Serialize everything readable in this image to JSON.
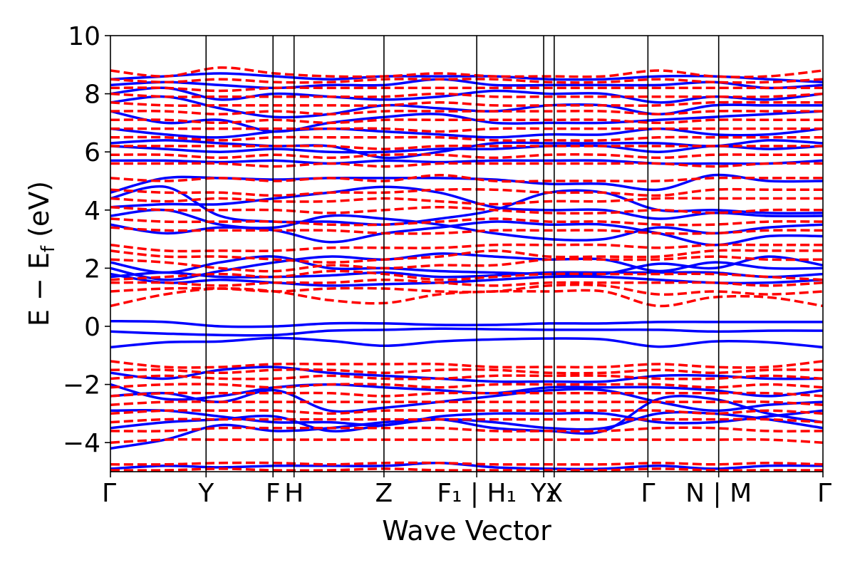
{
  "chart_data": {
    "type": "line",
    "xlabel": "Wave Vector",
    "ylabel": "E − E_f (eV)",
    "ylabel_parts": {
      "main": "E − E",
      "sub": "f",
      "unit": " (eV)"
    },
    "ylim": [
      -5,
      10
    ],
    "yticks": [
      -4,
      -2,
      0,
      2,
      4,
      6,
      8,
      10
    ],
    "ytick_labels": [
      "−4",
      "−2",
      "0",
      "2",
      "4",
      "6",
      "8",
      "10"
    ],
    "grid": false,
    "legend": "none",
    "kpath": [
      {
        "label": "Γ",
        "x": 0.0
      },
      {
        "label": "Y",
        "x": 1.0
      },
      {
        "label": "F",
        "x": 1.7
      },
      {
        "label": "H",
        "x": 1.92
      },
      {
        "label": "Z",
        "x": 2.86
      },
      {
        "label": "F₁ | H₁",
        "x": 3.83
      },
      {
        "label": "Y₁",
        "x": 4.53
      },
      {
        "label": "X",
        "x": 4.64
      },
      {
        "label": "Γ",
        "x": 5.62
      },
      {
        "label": "N | M",
        "x": 6.36
      },
      {
        "label": "Γ",
        "x": 7.45
      }
    ],
    "xlim": [
      0,
      7.45
    ],
    "series": [
      {
        "style": "solid",
        "color": "#0000ff",
        "bands": [
          [
            -0.72,
            -0.55,
            -0.52,
            -0.4,
            -0.5,
            -0.67,
            -0.52,
            -0.45,
            -0.42,
            -0.45,
            -0.7,
            -0.52,
            -0.55,
            -0.72
          ],
          [
            -0.18,
            -0.25,
            -0.3,
            -0.3,
            -0.15,
            -0.12,
            -0.08,
            -0.1,
            -0.12,
            -0.12,
            -0.12,
            -0.18,
            -0.15,
            -0.15
          ],
          [
            0.18,
            0.15,
            0.0,
            0.0,
            0.1,
            0.1,
            0.05,
            0.05,
            0.1,
            0.1,
            0.15,
            0.15,
            0.15,
            0.15
          ],
          [
            -3.5,
            -3.3,
            -3.2,
            -3.1,
            -3.6,
            -3.4,
            -3.2,
            -3.3,
            -3.5,
            -3.5,
            -3.0,
            -3.0,
            -3.2,
            -3.5
          ],
          [
            -4.2,
            -3.9,
            -3.4,
            -3.6,
            -3.5,
            -3.3,
            -3.2,
            -3.5,
            -3.6,
            -3.6,
            -2.5,
            -2.5,
            -3.0,
            -3.3
          ],
          [
            -2.4,
            -2.3,
            -2.6,
            -2.2,
            -2.9,
            -2.8,
            -2.6,
            -2.4,
            -2.2,
            -2.2,
            -2.6,
            -2.9,
            -2.7,
            -2.6
          ],
          [
            -2.0,
            -2.5,
            -2.4,
            -2.1,
            -2.0,
            -2.1,
            -2.2,
            -2.3,
            -2.1,
            -2.1,
            -2.1,
            -2.2,
            -2.4,
            -2.2
          ],
          [
            -1.6,
            -1.8,
            -1.5,
            -1.4,
            -1.6,
            -1.7,
            -1.8,
            -1.9,
            -1.9,
            -1.9,
            -1.7,
            -1.7,
            -1.8,
            -1.8
          ],
          [
            -2.9,
            -2.9,
            -3.1,
            -3.3,
            -3.3,
            -3.4,
            -3.1,
            -3.0,
            -3.0,
            -3.0,
            -3.3,
            -3.3,
            -3.1,
            -2.9
          ],
          [
            -4.9,
            -4.8,
            -4.85,
            -4.8,
            -4.8,
            -4.8,
            -4.7,
            -4.85,
            -4.9,
            -4.9,
            -4.8,
            -4.9,
            -4.8,
            -4.8
          ],
          [
            1.7,
            1.85,
            1.7,
            1.7,
            1.75,
            1.85,
            1.7,
            1.75,
            1.85,
            1.85,
            1.85,
            1.85,
            1.7,
            1.8
          ],
          [
            1.8,
            1.5,
            1.6,
            1.5,
            1.4,
            1.45,
            1.5,
            1.6,
            1.7,
            1.7,
            1.6,
            1.5,
            1.5,
            1.6
          ],
          [
            2.2,
            1.85,
            2.2,
            2.4,
            2.0,
            2.0,
            1.9,
            1.85,
            1.8,
            1.8,
            2.15,
            2.0,
            2.4,
            2.1
          ],
          [
            2.0,
            1.6,
            1.9,
            2.2,
            2.4,
            2.3,
            2.5,
            2.4,
            2.3,
            2.3,
            1.9,
            2.2,
            2.0,
            2.0
          ],
          [
            3.5,
            3.2,
            3.4,
            3.3,
            2.9,
            3.2,
            3.4,
            3.6,
            3.5,
            3.5,
            3.2,
            2.8,
            3.1,
            3.1
          ],
          [
            3.8,
            4.0,
            3.5,
            3.4,
            3.8,
            3.7,
            3.5,
            3.2,
            3.0,
            3.0,
            3.4,
            3.2,
            3.4,
            3.5
          ],
          [
            4.1,
            4.2,
            4.2,
            4.4,
            4.6,
            4.8,
            4.6,
            4.1,
            4.0,
            4.0,
            3.7,
            3.9,
            3.8,
            3.8
          ],
          [
            4.4,
            4.8,
            3.8,
            3.6,
            3.6,
            3.5,
            3.7,
            4.0,
            4.6,
            4.6,
            4.0,
            4.0,
            3.9,
            3.9
          ],
          [
            4.6,
            5.1,
            5.1,
            5.05,
            5.1,
            5.1,
            5.1,
            5.05,
            4.9,
            4.9,
            4.7,
            5.2,
            5.0,
            5.0
          ],
          [
            5.7,
            5.7,
            5.65,
            5.7,
            5.6,
            5.7,
            5.65,
            5.7,
            5.7,
            5.7,
            5.6,
            5.6,
            5.6,
            5.7
          ],
          [
            6.2,
            6.1,
            6.0,
            6.1,
            6.0,
            6.0,
            6.1,
            6.1,
            6.2,
            6.2,
            6.0,
            6.2,
            6.1,
            6.2
          ],
          [
            6.3,
            6.4,
            6.3,
            6.2,
            6.2,
            5.8,
            6.0,
            6.3,
            6.3,
            6.3,
            6.3,
            6.2,
            6.4,
            6.3
          ],
          [
            6.8,
            6.6,
            6.5,
            6.7,
            6.8,
            6.7,
            6.6,
            6.5,
            6.6,
            6.6,
            6.8,
            6.6,
            6.6,
            6.8
          ],
          [
            7.4,
            7.0,
            7.1,
            6.7,
            7.0,
            7.2,
            7.3,
            7.0,
            7.0,
            7.0,
            7.1,
            7.2,
            7.3,
            7.4
          ],
          [
            7.7,
            7.9,
            7.5,
            7.2,
            7.3,
            7.6,
            7.5,
            7.4,
            7.6,
            7.6,
            7.3,
            7.6,
            7.6,
            7.6
          ],
          [
            8.0,
            8.2,
            7.8,
            8.0,
            7.9,
            7.8,
            7.9,
            8.1,
            8.0,
            8.0,
            7.7,
            7.9,
            7.8,
            8.0
          ],
          [
            8.3,
            8.4,
            8.3,
            8.2,
            8.3,
            8.3,
            8.5,
            8.3,
            8.3,
            8.3,
            8.3,
            8.4,
            8.2,
            8.3
          ],
          [
            8.5,
            8.6,
            8.7,
            8.6,
            8.5,
            8.6,
            8.6,
            8.6,
            8.5,
            8.5,
            8.6,
            8.6,
            8.5,
            8.4
          ]
        ]
      },
      {
        "style": "dashed",
        "color": "#ff0000",
        "bands": [
          [
            0.7,
            1.1,
            1.3,
            1.2,
            0.9,
            0.8,
            1.1,
            1.2,
            1.2,
            1.2,
            0.7,
            1.0,
            1.0,
            0.7
          ],
          [
            1.2,
            1.3,
            1.3,
            1.2,
            1.3,
            1.3,
            1.2,
            1.2,
            1.4,
            1.4,
            1.1,
            1.2,
            1.1,
            1.2
          ],
          [
            1.5,
            1.5,
            1.4,
            1.5,
            1.5,
            1.6,
            1.5,
            1.4,
            1.5,
            1.5,
            1.5,
            1.5,
            1.4,
            1.5
          ],
          [
            1.6,
            1.7,
            1.8,
            1.7,
            1.9,
            1.8,
            1.6,
            1.7,
            1.8,
            1.8,
            1.8,
            1.8,
            1.7,
            1.6
          ],
          [
            2.3,
            2.2,
            2.0,
            1.9,
            2.1,
            2.0,
            2.1,
            2.1,
            2.3,
            2.3,
            2.3,
            2.4,
            2.3,
            2.3
          ],
          [
            2.6,
            2.4,
            2.4,
            2.3,
            2.2,
            2.3,
            2.4,
            2.6,
            2.4,
            2.4,
            2.4,
            2.6,
            2.6,
            2.6
          ],
          [
            2.8,
            2.6,
            2.6,
            2.6,
            2.7,
            2.7,
            2.7,
            2.8,
            2.8,
            2.8,
            2.7,
            2.8,
            2.8,
            2.8
          ],
          [
            3.4,
            3.3,
            3.3,
            3.3,
            3.3,
            3.2,
            3.2,
            3.3,
            3.3,
            3.3,
            3.2,
            3.2,
            3.3,
            3.3
          ],
          [
            3.7,
            3.6,
            3.6,
            3.6,
            3.5,
            3.5,
            3.6,
            3.7,
            3.6,
            3.6,
            3.5,
            3.5,
            3.6,
            3.6
          ],
          [
            4.1,
            4.0,
            4.0,
            4.0,
            3.9,
            4.0,
            4.1,
            4.0,
            3.9,
            3.9,
            4.0,
            3.9,
            4.0,
            4.0
          ],
          [
            4.4,
            4.3,
            4.4,
            4.3,
            4.3,
            4.4,
            4.3,
            4.2,
            4.3,
            4.3,
            4.4,
            4.4,
            4.4,
            4.4
          ],
          [
            4.7,
            4.6,
            4.6,
            4.5,
            4.6,
            4.6,
            4.7,
            4.7,
            4.6,
            4.6,
            4.5,
            4.7,
            4.7,
            4.7
          ],
          [
            5.1,
            5.0,
            5.1,
            5.0,
            5.1,
            5.0,
            5.2,
            5.0,
            5.0,
            5.0,
            5.0,
            5.1,
            5.1,
            5.1
          ],
          [
            5.6,
            5.6,
            5.6,
            5.5,
            5.6,
            5.5,
            5.6,
            5.6,
            5.6,
            5.6,
            5.6,
            5.5,
            5.6,
            5.6
          ],
          [
            5.9,
            5.9,
            5.8,
            5.9,
            5.8,
            5.9,
            5.9,
            5.8,
            5.9,
            5.9,
            5.8,
            5.9,
            5.9,
            5.9
          ],
          [
            6.2,
            6.2,
            6.2,
            6.2,
            6.2,
            6.1,
            6.2,
            6.2,
            6.2,
            6.2,
            6.2,
            6.2,
            6.2,
            6.2
          ],
          [
            6.5,
            6.5,
            6.4,
            6.5,
            6.5,
            6.5,
            6.5,
            6.4,
            6.4,
            6.4,
            6.5,
            6.5,
            6.5,
            6.5
          ],
          [
            6.8,
            6.8,
            6.8,
            6.8,
            6.8,
            6.8,
            6.7,
            6.8,
            6.8,
            6.8,
            6.8,
            6.8,
            6.8,
            6.8
          ],
          [
            7.1,
            7.1,
            7.0,
            7.1,
            7.0,
            7.1,
            7.1,
            7.1,
            7.1,
            7.1,
            7.0,
            7.1,
            7.1,
            7.1
          ],
          [
            7.4,
            7.4,
            7.3,
            7.4,
            7.3,
            7.4,
            7.4,
            7.4,
            7.4,
            7.4,
            7.3,
            7.4,
            7.4,
            7.4
          ],
          [
            7.7,
            7.6,
            7.6,
            7.6,
            7.6,
            7.6,
            7.7,
            7.6,
            7.6,
            7.6,
            7.6,
            7.7,
            7.7,
            7.7
          ],
          [
            8.0,
            7.9,
            7.9,
            7.9,
            7.9,
            7.9,
            8.0,
            7.9,
            7.9,
            7.9,
            7.9,
            7.9,
            7.9,
            8.0
          ],
          [
            8.2,
            8.2,
            8.1,
            8.2,
            8.2,
            8.2,
            8.2,
            8.2,
            8.2,
            8.2,
            8.2,
            8.2,
            8.2,
            8.2
          ],
          [
            8.5,
            8.4,
            8.5,
            8.4,
            8.4,
            8.5,
            8.5,
            8.5,
            8.4,
            8.4,
            8.5,
            8.4,
            8.4,
            8.5
          ],
          [
            8.8,
            8.6,
            8.9,
            8.7,
            8.6,
            8.6,
            8.7,
            8.6,
            8.6,
            8.6,
            8.8,
            8.6,
            8.6,
            8.8
          ],
          [
            -1.2,
            -1.4,
            -1.4,
            -1.3,
            -1.3,
            -1.3,
            -1.3,
            -1.4,
            -1.4,
            -1.4,
            -1.3,
            -1.4,
            -1.4,
            -1.2
          ],
          [
            -1.5,
            -1.5,
            -1.6,
            -1.5,
            -1.5,
            -1.6,
            -1.5,
            -1.5,
            -1.6,
            -1.6,
            -1.5,
            -1.6,
            -1.5,
            -1.5
          ],
          [
            -1.8,
            -1.7,
            -1.8,
            -1.8,
            -1.7,
            -1.8,
            -1.8,
            -1.7,
            -1.7,
            -1.7,
            -1.8,
            -1.8,
            -1.7,
            -1.8
          ],
          [
            -2.1,
            -2.0,
            -2.0,
            -2.1,
            -2.0,
            -2.0,
            -2.1,
            -2.0,
            -2.0,
            -2.0,
            -2.0,
            -2.1,
            -2.0,
            -2.1
          ],
          [
            -2.4,
            -2.3,
            -2.3,
            -2.3,
            -2.3,
            -2.4,
            -2.3,
            -2.3,
            -2.3,
            -2.3,
            -2.3,
            -2.3,
            -2.3,
            -2.4
          ],
          [
            -2.7,
            -2.6,
            -2.6,
            -2.6,
            -2.6,
            -2.6,
            -2.6,
            -2.6,
            -2.6,
            -2.6,
            -2.6,
            -2.6,
            -2.6,
            -2.7
          ],
          [
            -3.0,
            -2.9,
            -2.9,
            -2.9,
            -3.0,
            -2.9,
            -2.9,
            -2.9,
            -2.9,
            -2.9,
            -2.9,
            -3.0,
            -2.9,
            -3.0
          ],
          [
            -3.3,
            -3.2,
            -3.2,
            -3.2,
            -3.2,
            -3.2,
            -3.2,
            -3.2,
            -3.2,
            -3.2,
            -3.2,
            -3.2,
            -3.2,
            -3.3
          ],
          [
            -3.6,
            -3.6,
            -3.5,
            -3.5,
            -3.5,
            -3.5,
            -3.5,
            -3.6,
            -3.6,
            -3.6,
            -3.5,
            -3.5,
            -3.6,
            -3.6
          ],
          [
            -4.0,
            -3.9,
            -3.9,
            -3.9,
            -3.9,
            -3.9,
            -3.9,
            -3.9,
            -3.9,
            -3.9,
            -3.9,
            -3.9,
            -3.9,
            -4.0
          ],
          [
            -4.75,
            -4.75,
            -4.7,
            -4.7,
            -4.75,
            -4.7,
            -4.7,
            -4.75,
            -4.75,
            -4.75,
            -4.7,
            -4.75,
            -4.7,
            -4.75
          ],
          [
            -4.95,
            -4.95,
            -4.9,
            -4.95,
            -4.95,
            -4.9,
            -4.95,
            -4.95,
            -4.95,
            -4.95,
            -4.9,
            -4.95,
            -4.95,
            -4.95
          ]
        ]
      }
    ]
  }
}
